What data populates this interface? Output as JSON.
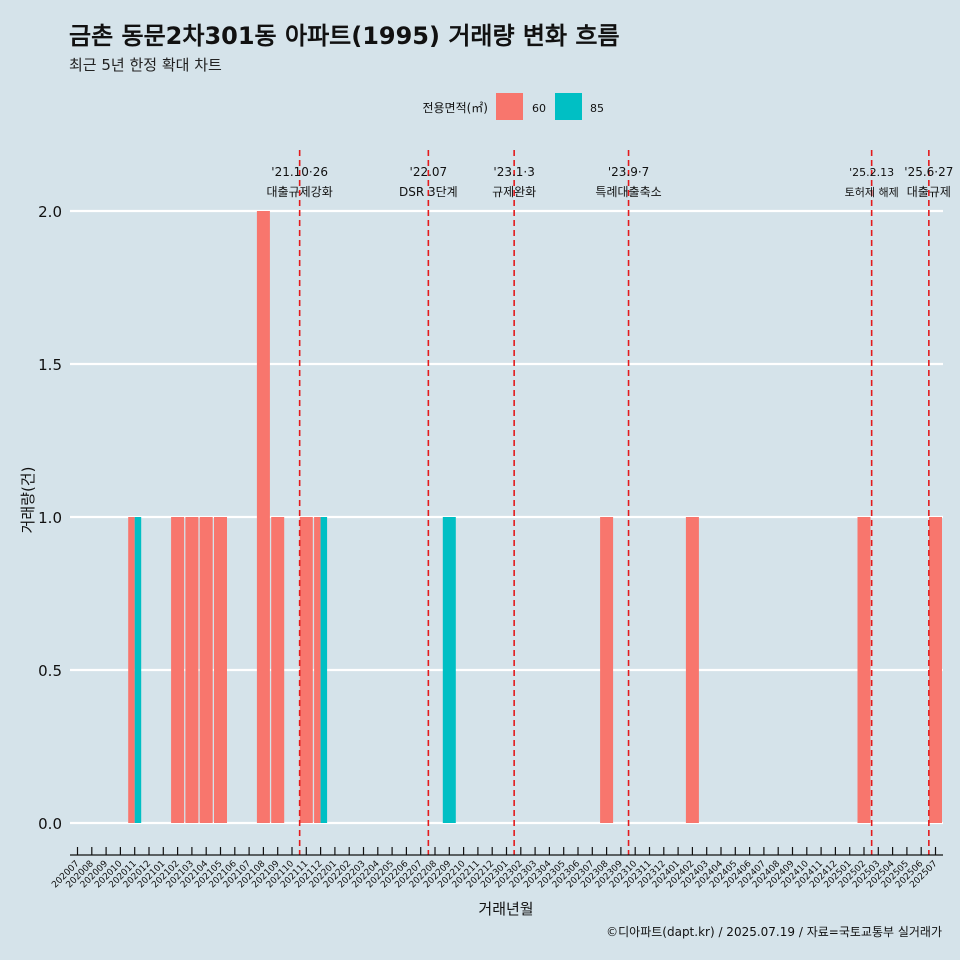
{
  "title": "금촌 동문2차301동 아파트(1995) 거래량 변화 흐름",
  "subtitle": "최근 5년 한정 확대 차트",
  "legend": {
    "title": "전용면적(㎡)",
    "items": [
      {
        "label": "60",
        "color": "#f8766d"
      },
      {
        "label": "85",
        "color": "#00bfc4"
      }
    ]
  },
  "caption": "©디아파트(dapt.kr) / 2025.07.19 / 자료=국토교통부 실거래가",
  "colors": {
    "background": "#d5e3ea",
    "grid": "#ffffff",
    "event_line": "#e31a1c"
  },
  "chart_data": {
    "type": "bar",
    "xlabel": "거래년월",
    "ylabel": "거래량(건)",
    "ylim": [
      0,
      2
    ],
    "yticks": [
      0.0,
      0.5,
      1.0,
      1.5,
      2.0
    ],
    "ytick_labels": [
      "0.0",
      "0.5",
      "1.0",
      "1.5",
      "2.0"
    ],
    "categories": [
      "202007",
      "202008",
      "202009",
      "202010",
      "202011",
      "202012",
      "202101",
      "202102",
      "202103",
      "202104",
      "202105",
      "202106",
      "202107",
      "202108",
      "202109",
      "202110",
      "202111",
      "202112",
      "202201",
      "202202",
      "202203",
      "202204",
      "202205",
      "202206",
      "202207",
      "202208",
      "202209",
      "202210",
      "202211",
      "202212",
      "202301",
      "202302",
      "202303",
      "202304",
      "202305",
      "202306",
      "202307",
      "202308",
      "202309",
      "202310",
      "202311",
      "202312",
      "202401",
      "202402",
      "202403",
      "202404",
      "202405",
      "202406",
      "202407",
      "202408",
      "202409",
      "202410",
      "202411",
      "202412",
      "202501",
      "202502",
      "202503",
      "202504",
      "202505",
      "202506",
      "202507"
    ],
    "series": [
      {
        "name": "60",
        "color": "#f8766d",
        "values": [
          0,
          0,
          0,
          0,
          1,
          0,
          0,
          1,
          1,
          1,
          1,
          0,
          0,
          2,
          1,
          0,
          1,
          1,
          0,
          0,
          0,
          0,
          0,
          0,
          0,
          0,
          0,
          0,
          0,
          0,
          0,
          0,
          0,
          0,
          0,
          0,
          0,
          1,
          0,
          0,
          0,
          0,
          0,
          1,
          0,
          0,
          0,
          0,
          0,
          0,
          0,
          0,
          0,
          0,
          0,
          1,
          0,
          0,
          0,
          0,
          1
        ]
      },
      {
        "name": "85",
        "color": "#00bfc4",
        "values": [
          0,
          0,
          0,
          0,
          1,
          0,
          0,
          0,
          0,
          0,
          0,
          0,
          0,
          0,
          0,
          0,
          0,
          1,
          0,
          0,
          0,
          0,
          0,
          0,
          0,
          0,
          1,
          0,
          0,
          0,
          0,
          0,
          0,
          0,
          0,
          0,
          0,
          0,
          0,
          0,
          0,
          0,
          0,
          0,
          0,
          0,
          0,
          0,
          0,
          0,
          0,
          0,
          0,
          0,
          0,
          0,
          0,
          0,
          0,
          0,
          0
        ]
      }
    ],
    "events": [
      {
        "date": "'21.10·26",
        "label": "대출규제강화",
        "at": "202110"
      },
      {
        "date": "'22.07",
        "label": "DSR 3단계",
        "at": "202207"
      },
      {
        "date": "'23.1·3",
        "label": "규제완화",
        "at": "202301"
      },
      {
        "date": "'23.9·7",
        "label": "특례대출축소",
        "at": "202309"
      },
      {
        "date": "'25.2.13",
        "label": "토허제 해제",
        "at": "202502"
      },
      {
        "date": "'25.6·27",
        "label": "대출규제",
        "at": "202506"
      }
    ]
  }
}
